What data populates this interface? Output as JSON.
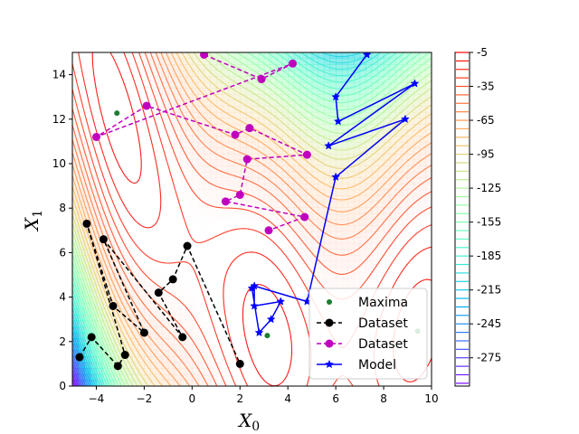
{
  "chart_data": {
    "type": "contour",
    "xlabel": "X",
    "xlabel_sub": "0",
    "ylabel": "X",
    "ylabel_sub": "1",
    "xlim": [
      -5,
      10
    ],
    "ylim": [
      0,
      15
    ],
    "xticks": [
      "−4",
      "−2",
      "0",
      "2",
      "4",
      "6",
      "8",
      "10"
    ],
    "xtick_values": [
      -4,
      -2,
      0,
      2,
      4,
      6,
      8,
      10
    ],
    "yticks": [
      "0",
      "2",
      "4",
      "6",
      "8",
      "10",
      "12",
      "14"
    ],
    "ytick_values": [
      0,
      2,
      4,
      6,
      8,
      10,
      12,
      14
    ],
    "colorbar": {
      "min": -300,
      "max": -5,
      "ticks": [
        "-5",
        "-35",
        "-65",
        "-95",
        "-125",
        "-155",
        "-185",
        "-215",
        "-245",
        "-275"
      ],
      "tick_values": [
        -5,
        -35,
        -65,
        -95,
        -125,
        -155,
        -185,
        -215,
        -245,
        -275
      ],
      "colormap": "rainbow"
    },
    "legend": {
      "location": "lower-right",
      "entries": [
        {
          "label": "Maxima",
          "color": "#1e7d32",
          "marker": "circle",
          "line": "none"
        },
        {
          "label": "Dataset",
          "color": "#000000",
          "marker": "circle",
          "line": "dashed"
        },
        {
          "label": "Dataset",
          "color": "#bf00bf",
          "marker": "circle",
          "line": "dashed"
        },
        {
          "label": "Model",
          "color": "#0000ff",
          "marker": "star",
          "line": "solid"
        }
      ]
    },
    "series": [
      {
        "name": "Maxima",
        "color": "#1e7d32",
        "marker": "circle",
        "line": "none",
        "x": [
          -3.14,
          3.14,
          9.42
        ],
        "y": [
          12.27,
          2.27,
          2.47
        ]
      },
      {
        "name": "Dataset",
        "color": "#000000",
        "marker": "circle",
        "line": "dashed",
        "x": [
          -4.7,
          -4.2,
          -3.1,
          -2.8,
          -4.4,
          -3.3,
          -2.0,
          -3.7,
          -0.4,
          -1.4,
          -0.8,
          -0.2,
          2.0
        ],
        "y": [
          1.3,
          2.2,
          0.9,
          1.4,
          7.3,
          3.6,
          2.4,
          6.6,
          2.2,
          4.2,
          4.8,
          6.3,
          1.0
        ]
      },
      {
        "name": "Dataset",
        "color": "#bf00bf",
        "marker": "circle",
        "line": "dashed",
        "x": [
          0.5,
          2.9,
          4.2,
          -4.0,
          -1.9,
          1.8,
          2.4,
          4.8,
          2.3,
          2.0,
          1.4,
          4.7,
          3.2
        ],
        "y": [
          14.9,
          13.8,
          14.5,
          11.2,
          12.6,
          11.3,
          11.6,
          10.4,
          10.2,
          8.6,
          8.3,
          7.6,
          7.0
        ]
      },
      {
        "name": "Model",
        "color": "#0000ff",
        "marker": "star",
        "line": "solid",
        "x": [
          7.3,
          6.0,
          6.1,
          9.3,
          5.7,
          8.9,
          6.0,
          4.8,
          2.6,
          2.6,
          3.7,
          3.3,
          2.8,
          2.5
        ],
        "y": [
          14.9,
          13.0,
          11.9,
          13.6,
          10.8,
          12.0,
          9.4,
          3.8,
          4.5,
          3.6,
          3.8,
          3.0,
          2.4,
          4.4
        ]
      }
    ]
  }
}
